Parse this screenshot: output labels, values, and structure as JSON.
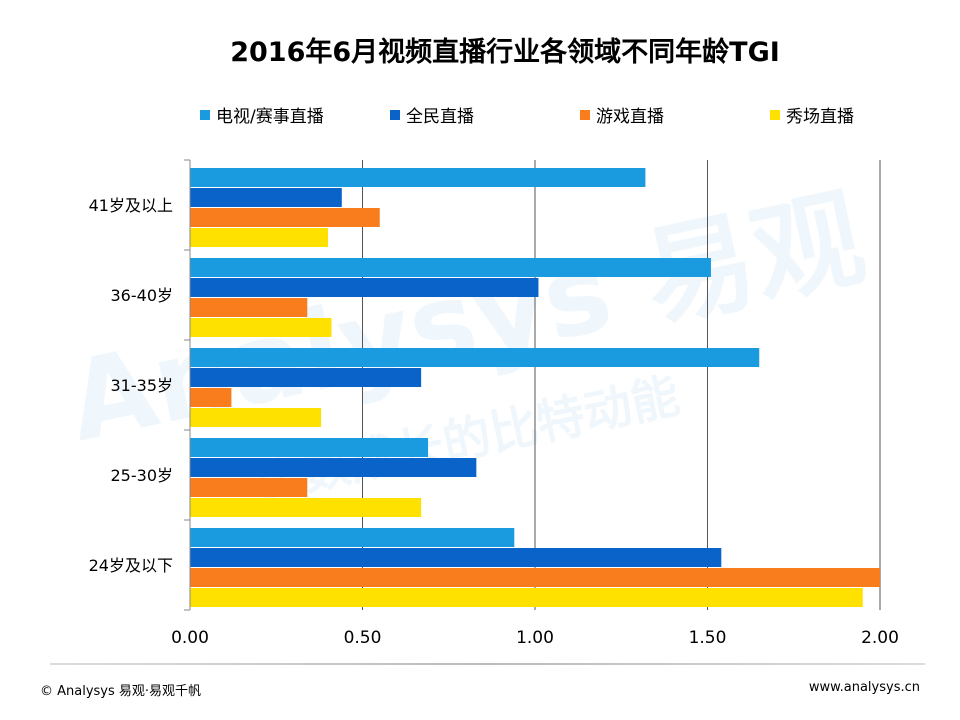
{
  "chart_data": {
    "type": "bar",
    "orientation": "horizontal",
    "title": "2016年6月视频直播行业各领域不同年龄TGI",
    "categories": [
      "41岁及以上",
      "36-40岁",
      "31-35岁",
      "25-30岁",
      "24岁及以下"
    ],
    "series": [
      {
        "name": "电视/赛事直播",
        "color": "#1a9be0",
        "values": [
          1.32,
          1.51,
          1.65,
          0.69,
          0.94
        ]
      },
      {
        "name": "全民直播",
        "color": "#0a63c9",
        "values": [
          0.44,
          1.01,
          0.67,
          0.83,
          1.54
        ]
      },
      {
        "name": "游戏直播",
        "color": "#f97d1c",
        "values": [
          0.55,
          0.34,
          0.12,
          0.34,
          2.0
        ]
      },
      {
        "name": "秀场直播",
        "color": "#ffe100",
        "values": [
          0.4,
          0.41,
          0.38,
          0.67,
          1.95
        ]
      }
    ],
    "xlim": [
      0,
      2
    ],
    "xticks": [
      "0.00",
      "0.50",
      "1.00",
      "1.50",
      "2.00"
    ],
    "grid": "vertical",
    "legend": "top"
  },
  "footer": {
    "copyright": "© Analysys 易观·易观千帆",
    "url": "www.analysys.cn"
  },
  "watermark": {
    "brand": "Analysys 易观",
    "slogan": "比数成长的比特动能"
  }
}
